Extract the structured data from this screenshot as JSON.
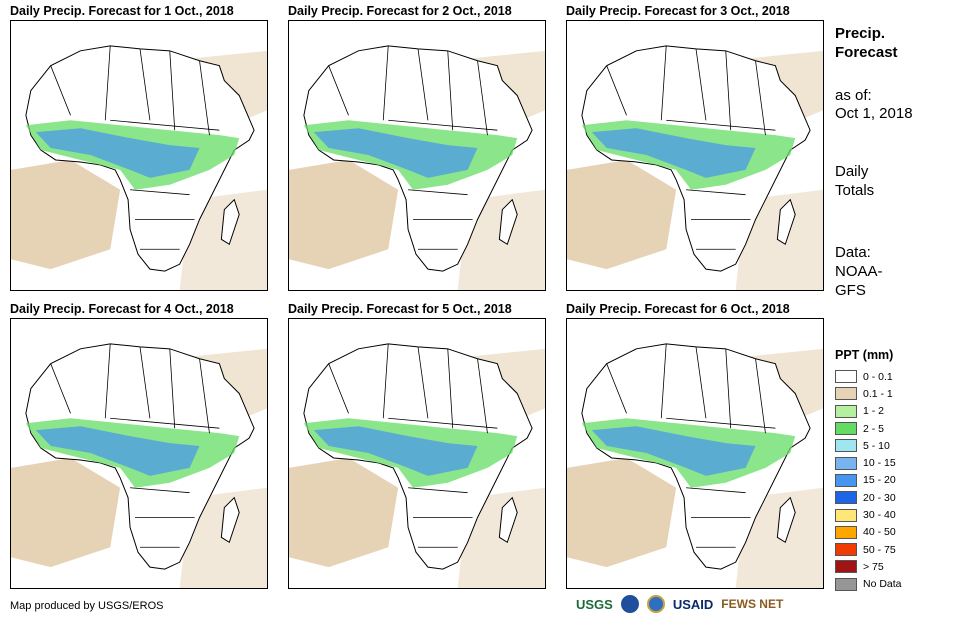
{
  "panels": [
    {
      "title": "Daily Precip. Forecast for 1 Oct., 2018"
    },
    {
      "title": "Daily Precip. Forecast for 2 Oct., 2018"
    },
    {
      "title": "Daily Precip. Forecast for 3 Oct., 2018"
    },
    {
      "title": "Daily Precip. Forecast for 4 Oct., 2018"
    },
    {
      "title": "Daily Precip. Forecast for 5 Oct., 2018"
    },
    {
      "title": "Daily Precip. Forecast for 6 Oct., 2018"
    }
  ],
  "info": {
    "title_line1": "Precip.",
    "title_line2": "Forecast",
    "asof_label": "as of:",
    "asof_date": "Oct 1, 2018",
    "totals_line1": "Daily",
    "totals_line2": "Totals",
    "data_label": "Data:",
    "data_line1": "NOAA-",
    "data_line2": "GFS"
  },
  "legend": {
    "title": "PPT (mm)",
    "items": [
      {
        "label": "0 - 0.1",
        "color": "#ffffff"
      },
      {
        "label": "0.1 - 1",
        "color": "#e6d2b4"
      },
      {
        "label": "1 - 2",
        "color": "#b4f0a0"
      },
      {
        "label": "2 - 5",
        "color": "#64dc64"
      },
      {
        "label": "5 - 10",
        "color": "#a0e6f0"
      },
      {
        "label": "10 - 15",
        "color": "#78b4f0"
      },
      {
        "label": "15 - 20",
        "color": "#4696f0"
      },
      {
        "label": "20 - 30",
        "color": "#1e64e6"
      },
      {
        "label": "30 - 40",
        "color": "#ffe678"
      },
      {
        "label": "40 - 50",
        "color": "#ffa500"
      },
      {
        "label": "50 - 75",
        "color": "#f03c00"
      },
      {
        "label": "> 75",
        "color": "#a01414"
      },
      {
        "label": "No Data",
        "color": "#969696"
      }
    ]
  },
  "credit": "Map produced by USGS/EROS",
  "logos": {
    "usgs": "USGS",
    "usaid": "USAID",
    "fews": "FEWS NET"
  }
}
